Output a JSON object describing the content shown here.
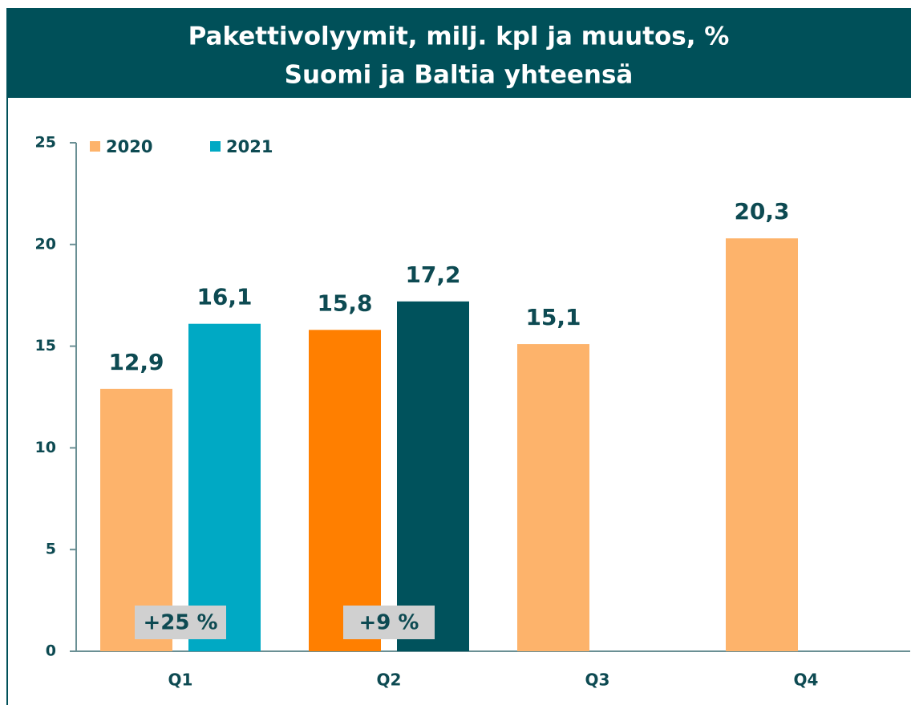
{
  "chart_data": {
    "type": "bar",
    "title": "Pakettivolyymit, milj. kpl ja muutos, %",
    "subtitle": "Suomi ja Baltia yhteensä",
    "categories": [
      "Q1",
      "Q2",
      "Q3",
      "Q4"
    ],
    "series": [
      {
        "name": "2020",
        "color": "#fdb36b",
        "colors": [
          "#fdb36b",
          "#ff7f00",
          "#fdb36b",
          "#fdb36b"
        ],
        "values": [
          12.9,
          15.8,
          15.1,
          20.3
        ],
        "value_labels": [
          "12,9",
          "15,8",
          "15,1",
          "20,3"
        ]
      },
      {
        "name": "2021",
        "color": "#00a9c4",
        "colors": [
          "#00a9c4",
          "#00525c",
          null,
          null
        ],
        "values": [
          16.1,
          17.2,
          null,
          null
        ],
        "value_labels": [
          "16,1",
          "17,2",
          null,
          null
        ]
      }
    ],
    "annotations": [
      {
        "text": "+25 %",
        "category": "Q1"
      },
      {
        "text": "+9 %",
        "category": "Q2"
      }
    ],
    "ylim": [
      0,
      25
    ],
    "yticks": [
      0,
      5,
      10,
      15,
      20,
      25
    ],
    "grid": false,
    "legend": "top-left"
  }
}
